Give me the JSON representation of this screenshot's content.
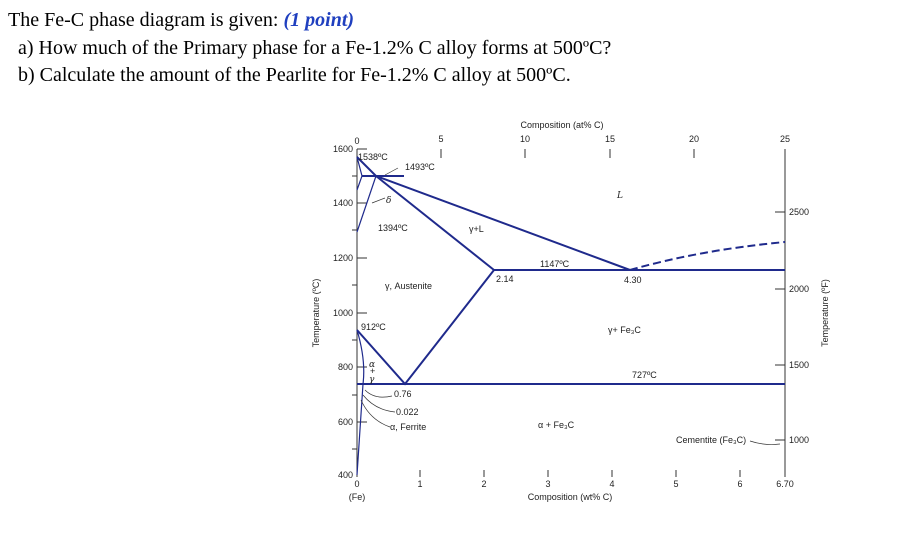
{
  "question": {
    "intro": "The Fe-C phase diagram is given:",
    "points": "(1 point)",
    "a": "a)  How much of the Primary phase for a Fe-1.2% C alloy forms at 500ºC?",
    "b": "b)  Calculate the amount of the Pearlite for Fe-1.2% C alloy at 500ºC."
  },
  "diagram": {
    "top_axis": {
      "title": "Composition (at% C)",
      "ticks": [
        "0",
        "5",
        "10",
        "15",
        "20",
        "25"
      ]
    },
    "left_axis": {
      "title": "Temperature (ºC)",
      "ticks": [
        "1600",
        "1400",
        "1200",
        "1000",
        "800",
        "600",
        "400"
      ]
    },
    "right_axis": {
      "title": "Temperature (ºF)",
      "ticks": [
        "2500",
        "2000",
        "1500",
        "1000"
      ]
    },
    "bottom_axis": {
      "title": "Composition (wt% C)",
      "ticks": [
        "0",
        "1",
        "2",
        "3",
        "4",
        "5",
        "6",
        "6.70"
      ],
      "origin_note": "(Fe)"
    },
    "labels": {
      "t1538": "1538ºC",
      "t1493": "1493ºC",
      "delta": "δ",
      "liquid": "L",
      "t1394": "1394ºC",
      "gamma_l": "γ+L",
      "austenite": "γ, Austenite",
      "c214": "2.14",
      "t1147": "1147ºC",
      "c430": "4.30",
      "t912": "912ºC",
      "gamma_fe3c": "γ+ Fe₃C",
      "t727": "727ºC",
      "alpha": "α",
      "plus": "+",
      "gamma": "γ",
      "c076": "0.76",
      "c0022": "0.022",
      "ferrite": "α, Ferrite",
      "alpha_fe3c": "α + Fe₃C",
      "cementite": "Cementite (Fe₃C)"
    }
  }
}
